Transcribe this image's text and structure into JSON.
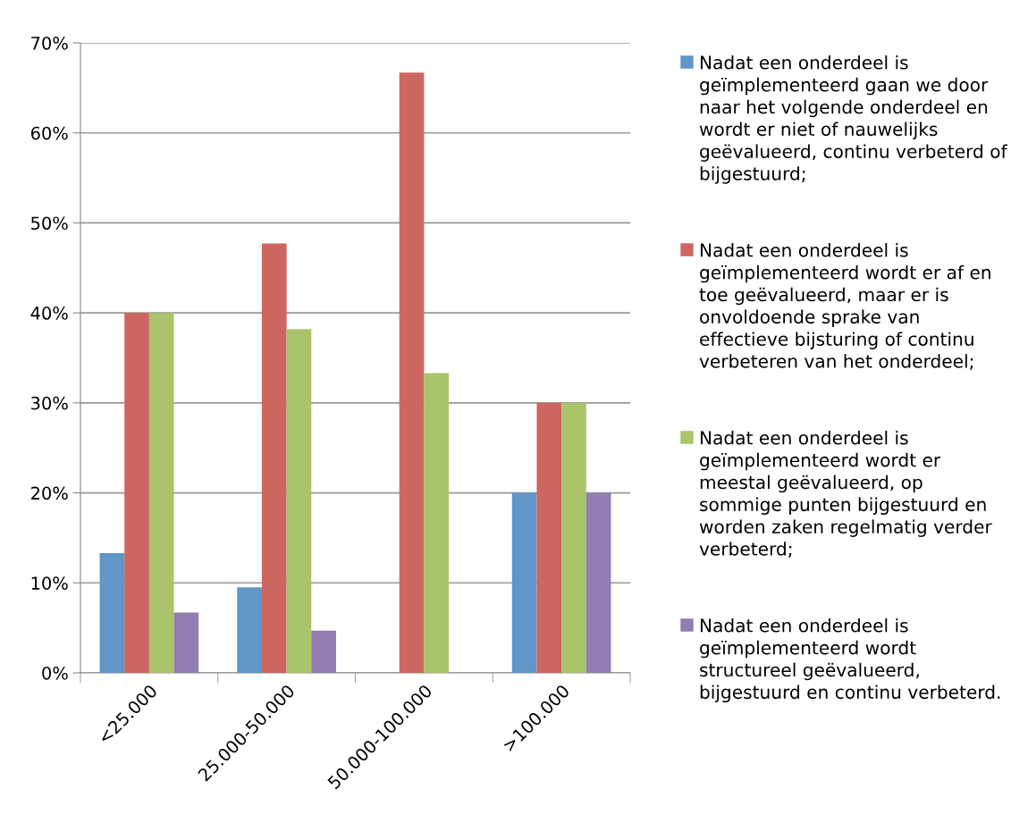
{
  "chart_data": {
    "type": "bar",
    "categories": [
      "<25.000",
      "25.000-50.000",
      "50.000-100.000",
      ">100.000"
    ],
    "series": [
      {
        "name": "Nadat een onderdeel is geïmplementeerd gaan we door naar het volgende onderdeel en wordt er niet of nauwelijks geëvalueerd, continu verbeterd of bijgestuurd;",
        "color": "#6096c8",
        "values": [
          13.3,
          9.5,
          0,
          20
        ]
      },
      {
        "name": "Nadat een onderdeel is geïmplementeerd wordt er af en toe geëvalueerd, maar er is onvoldoende sprake van effectieve bijsturing of continu verbeteren van het onderdeel;",
        "color": "#cd6660",
        "values": [
          40,
          47.7,
          66.7,
          30
        ]
      },
      {
        "name": "Nadat een onderdeel is geïmplementeerd wordt er meestal geëvalueerd, op sommige punten bijgestuurd en worden zaken regelmatig verder verbeterd;",
        "color": "#a9c46b",
        "values": [
          40,
          38.2,
          33.3,
          30
        ]
      },
      {
        "name": "Nadat een onderdeel is geïmplementeerd wordt structureel geëvalueerd, bijgestuurd en continu verbeterd.",
        "color": "#927cb2",
        "values": [
          6.7,
          4.7,
          0,
          20
        ]
      }
    ],
    "ylim": [
      0,
      70
    ],
    "yticks": [
      {
        "value": 0,
        "label": "0%"
      },
      {
        "value": 10,
        "label": "10%"
      },
      {
        "value": 20,
        "label": "20%"
      },
      {
        "value": 30,
        "label": "30%"
      },
      {
        "value": 40,
        "label": "40%"
      },
      {
        "value": 50,
        "label": "50%"
      },
      {
        "value": 60,
        "label": "60%"
      },
      {
        "value": 70,
        "label": "70%"
      }
    ],
    "grid": "y",
    "legend": "right"
  }
}
